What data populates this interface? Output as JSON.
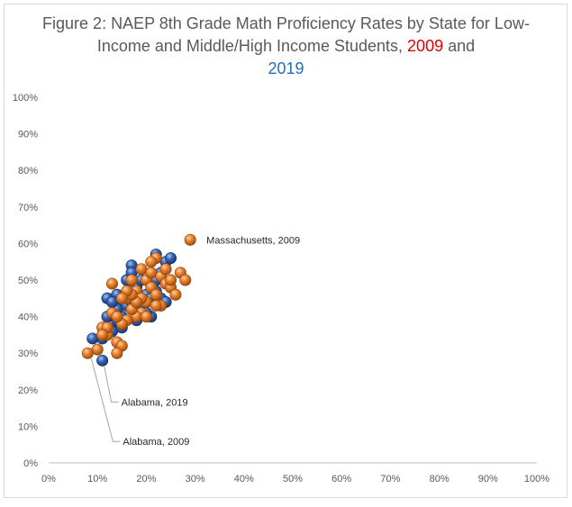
{
  "chart_data": {
    "type": "scatter",
    "title_parts": {
      "pre": "Figure 2: NAEP 8th Grade Math Proficiency Rates by State for Low-Income and Middle/High Income Students, ",
      "y2009": "2009",
      "mid": " and",
      "y2019": "2019"
    },
    "xlabel": "",
    "ylabel": "",
    "xlim": [
      0,
      100
    ],
    "ylim": [
      0,
      100
    ],
    "x_ticks": [
      "0%",
      "10%",
      "20%",
      "30%",
      "40%",
      "50%",
      "60%",
      "70%",
      "80%",
      "90%",
      "100%"
    ],
    "y_ticks": [
      "0%",
      "10%",
      "20%",
      "30%",
      "40%",
      "50%",
      "60%",
      "70%",
      "80%",
      "90%",
      "100%"
    ],
    "grid": false,
    "colors": {
      "2009": "#e8802a",
      "2019": "#3563b5",
      "title_2009": "#e00000",
      "title_2019": "#1f6fc0"
    },
    "series": [
      {
        "key": "2019",
        "points": [
          [
            11,
            34
          ],
          [
            9,
            34
          ],
          [
            13,
            38
          ],
          [
            12,
            45
          ],
          [
            14,
            46
          ],
          [
            15,
            44
          ],
          [
            16,
            50
          ],
          [
            17,
            54
          ],
          [
            17,
            52
          ],
          [
            18,
            48
          ],
          [
            19,
            45
          ],
          [
            16,
            43
          ],
          [
            15,
            40
          ],
          [
            14,
            39
          ],
          [
            13,
            36
          ],
          [
            15,
            37
          ],
          [
            18,
            42
          ],
          [
            20,
            44
          ],
          [
            21,
            40
          ],
          [
            22,
            47
          ],
          [
            23,
            52
          ],
          [
            24,
            55
          ],
          [
            22,
            57
          ],
          [
            25,
            56
          ],
          [
            21,
            49
          ],
          [
            20,
            46
          ],
          [
            19,
            50
          ],
          [
            17,
            47
          ],
          [
            16,
            45
          ],
          [
            18,
            39
          ],
          [
            23,
            45
          ],
          [
            24,
            44
          ],
          [
            22,
            50
          ],
          [
            19,
            43
          ],
          [
            20,
            41
          ],
          [
            14,
            42
          ],
          [
            13,
            44
          ],
          [
            12,
            40
          ],
          [
            17,
            44
          ],
          [
            21,
            45
          ],
          [
            11,
            28
          ]
        ]
      },
      {
        "key": "2009",
        "points": [
          [
            29,
            61
          ],
          [
            8,
            30
          ],
          [
            10,
            31
          ],
          [
            12,
            35
          ],
          [
            11,
            37
          ],
          [
            13,
            41
          ],
          [
            14,
            33
          ],
          [
            15,
            32
          ],
          [
            14,
            30
          ],
          [
            16,
            45
          ],
          [
            18,
            47
          ],
          [
            17,
            50
          ],
          [
            19,
            53
          ],
          [
            20,
            50
          ],
          [
            21,
            52
          ],
          [
            22,
            56
          ],
          [
            23,
            51
          ],
          [
            24,
            49
          ],
          [
            25,
            48
          ],
          [
            26,
            46
          ],
          [
            27,
            52
          ],
          [
            28,
            50
          ],
          [
            24,
            53
          ],
          [
            20,
            44
          ],
          [
            19,
            41
          ],
          [
            18,
            40
          ],
          [
            17,
            42
          ],
          [
            16,
            39
          ],
          [
            15,
            38
          ],
          [
            14,
            40
          ],
          [
            13,
            49
          ],
          [
            12,
            37
          ],
          [
            11,
            35
          ],
          [
            21,
            48
          ],
          [
            22,
            46
          ],
          [
            23,
            43
          ],
          [
            20,
            40
          ],
          [
            19,
            45
          ],
          [
            18,
            44
          ],
          [
            17,
            46
          ],
          [
            16,
            47
          ],
          [
            22,
            43
          ],
          [
            25,
            50
          ],
          [
            21,
            55
          ],
          [
            15,
            45
          ]
        ]
      }
    ],
    "annotations": [
      {
        "text": "Massachusetts, 2009",
        "x": 29,
        "y": 61
      },
      {
        "text": "Alabama, 2019",
        "x": 11,
        "y": 28
      },
      {
        "text": "Alabama, 2009",
        "x": 8,
        "y": 30
      }
    ]
  }
}
